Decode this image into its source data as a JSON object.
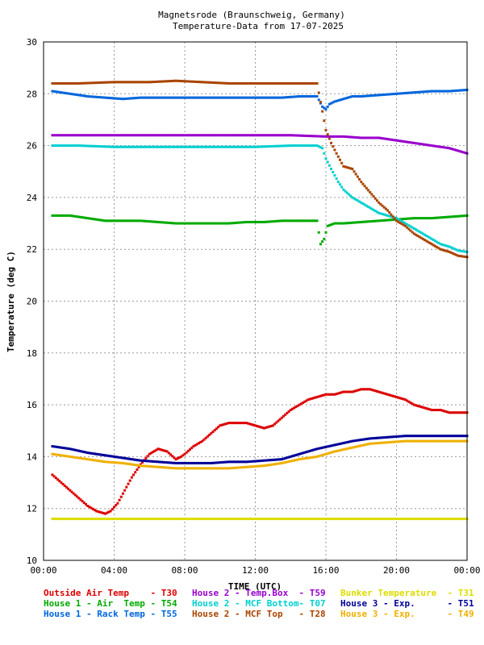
{
  "chart_data": {
    "type": "scatter",
    "title": "Magnetsrode (Braunschweig, Germany)",
    "subtitle": "Temperature-Data from 17-07-2025",
    "xlabel": "TIME (UTC)",
    "ylabel": "Temperature (deg C)",
    "xlim": [
      0,
      24
    ],
    "ylim": [
      10,
      30
    ],
    "x_ticks": [
      0,
      4,
      8,
      12,
      16,
      20,
      24
    ],
    "x_tick_labels": [
      "00:00",
      "04:00",
      "08:00",
      "12:00",
      "16:00",
      "20:00",
      "00:00"
    ],
    "y_ticks": [
      10,
      12,
      14,
      16,
      18,
      20,
      22,
      24,
      26,
      28,
      30
    ],
    "y_tick_labels": [
      "10",
      "12",
      "14",
      "16",
      "18",
      "20",
      "22",
      "24",
      "26",
      "28",
      "30"
    ],
    "grid": true,
    "legend_position": "bottom",
    "series": [
      {
        "name": "Outside Air Temp",
        "sensor": "T30",
        "color": "#dd0000",
        "x": [
          0.5,
          1.5,
          2.5,
          3.0,
          3.5,
          3.8,
          4.2,
          4.6,
          5.0,
          5.5,
          6.0,
          6.5,
          7.0,
          7.5,
          7.8,
          8.0,
          8.5,
          9.0,
          9.5,
          10.0,
          10.5,
          11.0,
          11.5,
          12.0,
          12.5,
          13.0,
          13.5,
          14.0,
          14.5,
          15.0,
          15.5,
          16.0,
          16.5,
          17.0,
          17.5,
          18.0,
          18.5,
          19.0,
          19.5,
          20.0,
          20.5,
          21.0,
          21.5,
          22.0,
          22.5,
          23.0,
          23.5,
          24.0
        ],
        "y": [
          13.3,
          12.7,
          12.1,
          11.9,
          11.8,
          11.9,
          12.2,
          12.7,
          13.2,
          13.7,
          14.1,
          14.3,
          14.2,
          13.9,
          14.0,
          14.1,
          14.4,
          14.6,
          14.9,
          15.2,
          15.3,
          15.3,
          15.3,
          15.2,
          15.1,
          15.2,
          15.5,
          15.8,
          16.0,
          16.2,
          16.3,
          16.4,
          16.4,
          16.5,
          16.5,
          16.6,
          16.6,
          16.5,
          16.4,
          16.3,
          16.2,
          16.0,
          15.9,
          15.8,
          15.8,
          15.7,
          15.7,
          15.7
        ]
      },
      {
        "name": "House 1 - Air  Temp",
        "sensor": "T54",
        "color": "#00aa00",
        "x": [
          0.5,
          1.5,
          2.5,
          3.5,
          4.5,
          5.5,
          6.5,
          7.5,
          8.5,
          9.5,
          10.5,
          11.5,
          12.5,
          13.5,
          14.5,
          15.5,
          15.7,
          15.9,
          16.1,
          16.5,
          17.0,
          18.0,
          19.0,
          20.0,
          21.0,
          22.0,
          23.0,
          24.0
        ],
        "y": [
          23.3,
          23.3,
          23.2,
          23.1,
          23.1,
          23.1,
          23.05,
          23.0,
          23.0,
          23.0,
          23.0,
          23.05,
          23.05,
          23.1,
          23.1,
          23.1,
          22.2,
          22.4,
          22.9,
          23.0,
          23.0,
          23.05,
          23.1,
          23.15,
          23.2,
          23.2,
          23.25,
          23.3
        ]
      },
      {
        "name": "House 1 - Rack Temp",
        "sensor": "T55",
        "color": "#0066dd",
        "x": [
          0.5,
          1.5,
          2.5,
          3.5,
          4.5,
          5.5,
          6.5,
          7.5,
          8.5,
          9.5,
          10.5,
          11.5,
          12.5,
          13.5,
          14.5,
          15.5,
          15.8,
          16.0,
          16.2,
          16.5,
          17.0,
          17.5,
          18.0,
          19.0,
          20.0,
          21.0,
          22.0,
          23.0,
          24.0
        ],
        "y": [
          28.1,
          28.0,
          27.9,
          27.85,
          27.8,
          27.85,
          27.85,
          27.85,
          27.85,
          27.85,
          27.85,
          27.85,
          27.85,
          27.85,
          27.9,
          27.9,
          27.5,
          27.4,
          27.6,
          27.7,
          27.8,
          27.9,
          27.9,
          27.95,
          28.0,
          28.05,
          28.1,
          28.1,
          28.15
        ]
      },
      {
        "name": "House 2 - Temp.Box",
        "sensor": "T59",
        "color": "#9900cc",
        "x": [
          0.5,
          2.0,
          4.0,
          6.0,
          8.0,
          10.0,
          12.0,
          14.0,
          16.0,
          17.0,
          18.0,
          19.0,
          20.0,
          21.0,
          22.0,
          23.0,
          24.0
        ],
        "y": [
          26.4,
          26.4,
          26.4,
          26.4,
          26.4,
          26.4,
          26.4,
          26.4,
          26.35,
          26.35,
          26.3,
          26.3,
          26.2,
          26.1,
          26.0,
          25.9,
          25.7
        ]
      },
      {
        "name": "House 2 - MCF Bottom",
        "sensor": "T07",
        "color": "#00d0d0",
        "x": [
          0.5,
          2.0,
          4.0,
          6.0,
          8.0,
          10.0,
          12.0,
          14.0,
          15.5,
          15.8,
          16.0,
          16.3,
          16.7,
          17.0,
          17.5,
          18.0,
          18.5,
          19.0,
          19.5,
          20.0,
          20.5,
          21.0,
          21.5,
          22.0,
          22.5,
          23.0,
          23.5,
          24.0
        ],
        "y": [
          26.0,
          26.0,
          25.95,
          25.95,
          25.95,
          25.95,
          25.95,
          26.0,
          26.0,
          25.9,
          25.5,
          25.1,
          24.6,
          24.3,
          24.0,
          23.8,
          23.6,
          23.4,
          23.3,
          23.2,
          23.0,
          22.8,
          22.6,
          22.4,
          22.2,
          22.1,
          21.95,
          21.9
        ]
      },
      {
        "name": "House 2 - MCF Top",
        "sensor": "T28",
        "color": "#aa4400",
        "x": [
          0.5,
          2.0,
          4.0,
          6.0,
          7.5,
          9.0,
          10.5,
          12.0,
          13.5,
          15.5,
          16.0,
          16.3,
          16.6,
          17.0,
          17.5,
          18.0,
          18.5,
          19.0,
          19.5,
          20.0,
          20.5,
          21.0,
          21.5,
          22.0,
          22.5,
          23.0,
          23.5,
          24.0
        ],
        "y": [
          28.4,
          28.4,
          28.45,
          28.45,
          28.5,
          28.45,
          28.4,
          28.4,
          28.4,
          28.4,
          26.6,
          26.1,
          25.7,
          25.2,
          25.1,
          24.6,
          24.2,
          23.8,
          23.5,
          23.1,
          22.9,
          22.6,
          22.4,
          22.2,
          22.0,
          21.9,
          21.75,
          21.7
        ]
      },
      {
        "name": "Bunker Temperature",
        "sensor": "T31",
        "color": "#dddd00",
        "x": [
          0.5,
          2.0,
          4.0,
          6.0,
          8.0,
          10.0,
          12.0,
          14.0,
          16.0,
          18.0,
          20.0,
          22.0,
          24.0
        ],
        "y": [
          11.6,
          11.6,
          11.6,
          11.6,
          11.6,
          11.6,
          11.6,
          11.6,
          11.6,
          11.6,
          11.6,
          11.6,
          11.6
        ]
      },
      {
        "name": "House 3 - Exp.",
        "sensor": "T51",
        "color": "#000099",
        "x": [
          0.5,
          1.5,
          2.5,
          3.5,
          4.5,
          5.5,
          6.5,
          7.5,
          8.5,
          9.5,
          10.5,
          11.5,
          12.5,
          13.5,
          14.5,
          15.5,
          16.5,
          17.5,
          18.5,
          19.5,
          20.5,
          21.5,
          22.5,
          23.5,
          24.0
        ],
        "y": [
          14.4,
          14.3,
          14.15,
          14.05,
          13.95,
          13.85,
          13.8,
          13.75,
          13.75,
          13.75,
          13.8,
          13.8,
          13.85,
          13.9,
          14.1,
          14.3,
          14.45,
          14.6,
          14.7,
          14.75,
          14.8,
          14.8,
          14.8,
          14.8,
          14.8
        ]
      },
      {
        "name": "House 3 - Exp.",
        "sensor": "T49",
        "color": "#f0b000",
        "x": [
          0.5,
          1.5,
          2.5,
          3.5,
          4.5,
          5.5,
          6.5,
          7.5,
          8.5,
          9.5,
          10.5,
          11.5,
          12.5,
          13.5,
          14.5,
          15.5,
          16.5,
          17.5,
          18.5,
          19.5,
          20.5,
          21.5,
          22.5,
          23.5,
          24.0
        ],
        "y": [
          14.1,
          14.0,
          13.9,
          13.8,
          13.75,
          13.65,
          13.6,
          13.55,
          13.55,
          13.55,
          13.55,
          13.6,
          13.65,
          13.75,
          13.9,
          14.0,
          14.2,
          14.35,
          14.5,
          14.55,
          14.6,
          14.6,
          14.6,
          14.6,
          14.6
        ]
      }
    ],
    "legend": {
      "rows": [
        [
          {
            "label": "Outside Air Temp    - T30",
            "color": "#dd0000"
          },
          {
            "label": "House 2 - Temp.Box  - T59",
            "color": "#9900cc"
          },
          {
            "label": "Bunker Temperature  - T31",
            "color": "#dddd00"
          }
        ],
        [
          {
            "label": "House 1 - Air  Temp - T54",
            "color": "#00aa00"
          },
          {
            "label": "House 2 - MCF Bottom- T07",
            "color": "#00d0d0"
          },
          {
            "label": "House 3 - Exp.      - T51",
            "color": "#000099"
          }
        ],
        [
          {
            "label": "House 1 - Rack Temp - T55",
            "color": "#0066dd"
          },
          {
            "label": "House 2 - MCF Top   - T28",
            "color": "#aa4400"
          },
          {
            "label": "House 3 - Exp.      - T49",
            "color": "#f0b000"
          }
        ]
      ]
    }
  }
}
